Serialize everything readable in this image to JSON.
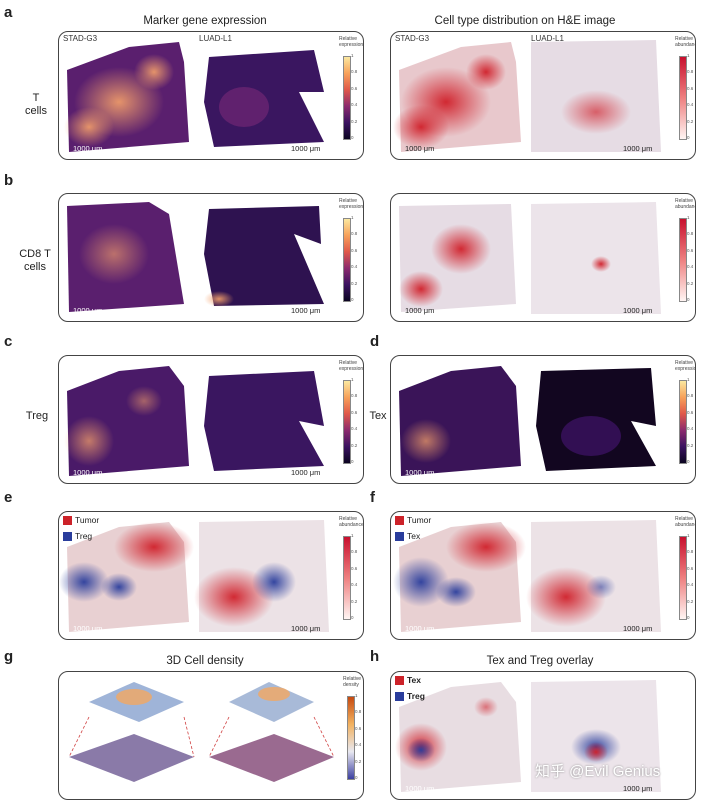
{
  "panels": {
    "a": "a",
    "b": "b",
    "c": "c",
    "d": "d",
    "e": "e",
    "f": "f",
    "g": "g",
    "h": "h"
  },
  "titles": {
    "marker": "Marker gene expression",
    "celltype": "Cell type distribution on H&E image",
    "cell3d": "3D Cell density",
    "overlay": "Tex and Treg overlay"
  },
  "samples": {
    "left": "STAD-G3",
    "right": "LUAD-L1"
  },
  "rows": {
    "t_cells": "T\ncells",
    "cd8": "CD8 T\ncells",
    "treg": "Treg",
    "tex": "Tex"
  },
  "scale": "1000 μm",
  "colorbars": {
    "expression": "Relative\nexpression",
    "abundance": "Relative\nabundance",
    "density": "Relative\ndensity",
    "ticks": [
      "1",
      "0.8",
      "0.6",
      "0.4",
      "0.2",
      "0"
    ]
  },
  "legends": {
    "e": [
      {
        "label": "Tumor",
        "color": "#cc2229"
      },
      {
        "label": "Treg",
        "color": "#2a3d9c"
      }
    ],
    "f": [
      {
        "label": "Tumor",
        "color": "#cc2229"
      },
      {
        "label": "Tex",
        "color": "#2a3d9c"
      }
    ],
    "h": [
      {
        "label": "Tex",
        "color": "#cc2229"
      },
      {
        "label": "Treg",
        "color": "#2a3d9c"
      }
    ]
  },
  "watermark": "知乎 @Evil Genius"
}
